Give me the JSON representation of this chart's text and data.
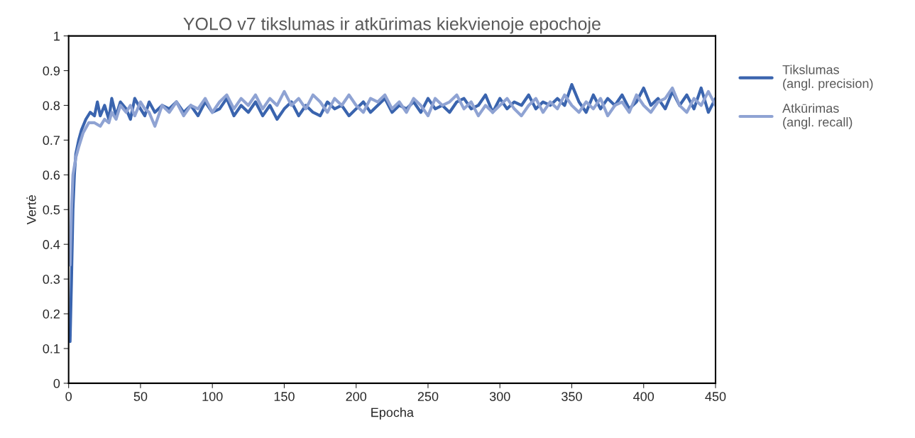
{
  "chart_data": {
    "type": "line",
    "title": "YOLO v7 tikslumas ir atkūrimas kiekvienoje epochoje",
    "xlabel": "Epocha",
    "ylabel": "Vertė",
    "xlim": [
      0,
      450
    ],
    "xticks": [
      0,
      50,
      100,
      150,
      200,
      250,
      300,
      350,
      400,
      450
    ],
    "ylim": [
      0,
      1
    ],
    "yticks": [
      0,
      0.1,
      0.2,
      0.3,
      0.4,
      0.5,
      0.6,
      0.7,
      0.8,
      0.9,
      1
    ],
    "grid": false,
    "legend": "right",
    "marker": "none",
    "line_style": "solid",
    "series": [
      {
        "name": "Tikslumas\n(angl. precision)",
        "color": "#3a64ae",
        "x": [
          1,
          2,
          3,
          4,
          5,
          7,
          9,
          12,
          15,
          18,
          20,
          22,
          25,
          28,
          30,
          33,
          36,
          40,
          43,
          46,
          50,
          53,
          56,
          60,
          65,
          70,
          75,
          80,
          85,
          90,
          95,
          100,
          105,
          110,
          115,
          120,
          125,
          130,
          135,
          140,
          145,
          150,
          155,
          160,
          165,
          170,
          175,
          180,
          185,
          190,
          195,
          200,
          205,
          210,
          215,
          220,
          225,
          230,
          235,
          240,
          245,
          250,
          255,
          260,
          265,
          270,
          275,
          280,
          285,
          290,
          295,
          300,
          305,
          310,
          315,
          320,
          325,
          330,
          335,
          340,
          345,
          350,
          355,
          360,
          365,
          370,
          375,
          380,
          385,
          390,
          395,
          400,
          405,
          410,
          415,
          420,
          425,
          430,
          435,
          440,
          445,
          450
        ],
        "values": [
          0.12,
          0.3,
          0.5,
          0.6,
          0.66,
          0.7,
          0.73,
          0.76,
          0.78,
          0.77,
          0.81,
          0.77,
          0.8,
          0.76,
          0.82,
          0.77,
          0.81,
          0.79,
          0.76,
          0.82,
          0.79,
          0.77,
          0.81,
          0.78,
          0.8,
          0.79,
          0.81,
          0.78,
          0.8,
          0.77,
          0.81,
          0.78,
          0.79,
          0.82,
          0.77,
          0.8,
          0.78,
          0.81,
          0.77,
          0.8,
          0.76,
          0.79,
          0.81,
          0.77,
          0.8,
          0.78,
          0.77,
          0.81,
          0.79,
          0.8,
          0.77,
          0.79,
          0.81,
          0.78,
          0.8,
          0.82,
          0.78,
          0.8,
          0.79,
          0.81,
          0.78,
          0.82,
          0.79,
          0.8,
          0.78,
          0.81,
          0.82,
          0.79,
          0.8,
          0.83,
          0.78,
          0.82,
          0.79,
          0.81,
          0.8,
          0.83,
          0.79,
          0.81,
          0.8,
          0.82,
          0.8,
          0.86,
          0.81,
          0.78,
          0.83,
          0.79,
          0.82,
          0.8,
          0.83,
          0.79,
          0.81,
          0.85,
          0.8,
          0.82,
          0.79,
          0.84,
          0.8,
          0.83,
          0.79,
          0.85,
          0.78,
          0.82
        ]
      },
      {
        "name": "Atkūrimas\n(angl. recall)",
        "color": "#8fa3d3",
        "x": [
          1,
          2,
          3,
          5,
          7,
          10,
          14,
          18,
          22,
          25,
          28,
          30,
          33,
          36,
          40,
          43,
          46,
          50,
          53,
          56,
          60,
          65,
          70,
          75,
          80,
          85,
          90,
          95,
          100,
          105,
          110,
          115,
          120,
          125,
          130,
          135,
          140,
          145,
          150,
          155,
          160,
          165,
          170,
          175,
          180,
          185,
          190,
          195,
          200,
          205,
          210,
          215,
          220,
          225,
          230,
          235,
          240,
          245,
          250,
          255,
          260,
          265,
          270,
          275,
          280,
          285,
          290,
          295,
          300,
          305,
          310,
          315,
          320,
          325,
          330,
          335,
          340,
          345,
          350,
          355,
          360,
          365,
          370,
          375,
          380,
          385,
          390,
          395,
          400,
          405,
          410,
          415,
          420,
          425,
          430,
          435,
          440,
          445,
          450
        ],
        "values": [
          0.34,
          0.5,
          0.6,
          0.65,
          0.68,
          0.72,
          0.75,
          0.75,
          0.74,
          0.76,
          0.75,
          0.78,
          0.76,
          0.8,
          0.78,
          0.8,
          0.77,
          0.81,
          0.79,
          0.78,
          0.74,
          0.8,
          0.78,
          0.81,
          0.77,
          0.8,
          0.79,
          0.82,
          0.78,
          0.81,
          0.83,
          0.79,
          0.82,
          0.8,
          0.83,
          0.79,
          0.82,
          0.8,
          0.84,
          0.8,
          0.82,
          0.79,
          0.83,
          0.81,
          0.78,
          0.82,
          0.8,
          0.83,
          0.8,
          0.78,
          0.82,
          0.81,
          0.83,
          0.79,
          0.81,
          0.78,
          0.82,
          0.8,
          0.77,
          0.82,
          0.8,
          0.81,
          0.83,
          0.79,
          0.81,
          0.77,
          0.8,
          0.78,
          0.8,
          0.82,
          0.79,
          0.77,
          0.8,
          0.82,
          0.78,
          0.81,
          0.79,
          0.83,
          0.8,
          0.78,
          0.81,
          0.79,
          0.82,
          0.77,
          0.8,
          0.81,
          0.78,
          0.83,
          0.8,
          0.78,
          0.81,
          0.82,
          0.85,
          0.8,
          0.78,
          0.82,
          0.8,
          0.84,
          0.8
        ]
      }
    ]
  }
}
